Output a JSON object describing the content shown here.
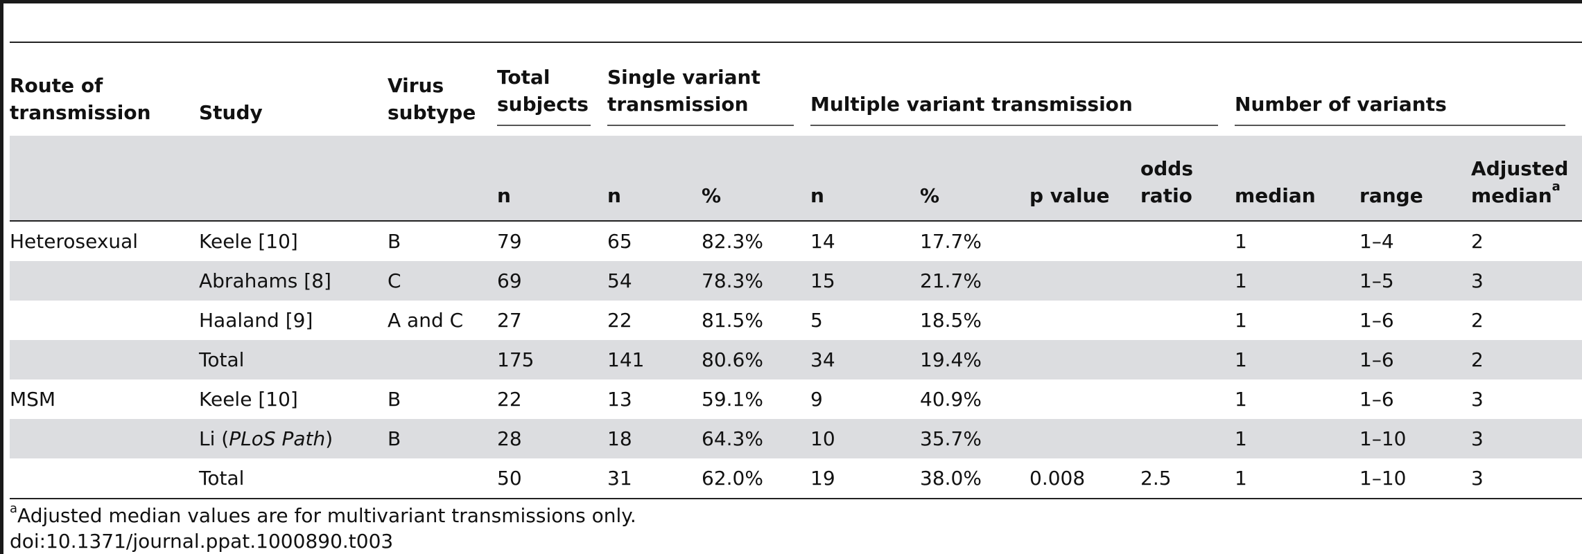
{
  "header_row1": {
    "route": "Route of transmission",
    "study": "Study",
    "virus": "Virus subtype",
    "total": "Total subjects",
    "single": "Single variant transmission",
    "multiple": "Multiple variant transmission",
    "num_variants": "Number of variants"
  },
  "header_row2": {
    "total_n": "n",
    "single_n": "n",
    "single_pct": "%",
    "multi_n": "n",
    "multi_pct": "%",
    "p_value": "p value",
    "odds_ratio": "odds ratio",
    "median": "median",
    "range": "range",
    "adjusted_median": "Adjusted median",
    "adjusted_median_sup": "a"
  },
  "rows": [
    {
      "route": "Heterosexual",
      "study": "Keele [10]",
      "study_italic": "",
      "study_suffix": "",
      "virus": "B",
      "total": "79",
      "single_n": "65",
      "single_pct": "82.3%",
      "multi_n": "14",
      "multi_pct": "17.7%",
      "p": "",
      "odds": "",
      "median": "1",
      "range": "1–4",
      "adj": "2"
    },
    {
      "route": "",
      "study": "Abrahams [8]",
      "study_italic": "",
      "study_suffix": "",
      "virus": "C",
      "total": "69",
      "single_n": "54",
      "single_pct": "78.3%",
      "multi_n": "15",
      "multi_pct": "21.7%",
      "p": "",
      "odds": "",
      "median": "1",
      "range": "1–5",
      "adj": "3"
    },
    {
      "route": "",
      "study": "Haaland [9]",
      "study_italic": "",
      "study_suffix": "",
      "virus": "A and C",
      "total": "27",
      "single_n": "22",
      "single_pct": "81.5%",
      "multi_n": "5",
      "multi_pct": "18.5%",
      "p": "",
      "odds": "",
      "median": "1",
      "range": "1–6",
      "adj": "2"
    },
    {
      "route": "",
      "study": "Total",
      "study_italic": "",
      "study_suffix": "",
      "virus": "",
      "total": "175",
      "single_n": "141",
      "single_pct": "80.6%",
      "multi_n": "34",
      "multi_pct": "19.4%",
      "p": "",
      "odds": "",
      "median": "1",
      "range": "1–6",
      "adj": "2"
    },
    {
      "route": "MSM",
      "study": "Keele [10]",
      "study_italic": "",
      "study_suffix": "",
      "virus": "B",
      "total": "22",
      "single_n": "13",
      "single_pct": "59.1%",
      "multi_n": "9",
      "multi_pct": "40.9%",
      "p": "",
      "odds": "",
      "median": "1",
      "range": "1–6",
      "adj": "3"
    },
    {
      "route": "",
      "study": "Li (",
      "study_italic": "PLoS Path",
      "study_suffix": ")",
      "virus": "B",
      "total": "28",
      "single_n": "18",
      "single_pct": "64.3%",
      "multi_n": "10",
      "multi_pct": "35.7%",
      "p": "",
      "odds": "",
      "median": "1",
      "range": "1–10",
      "adj": "3"
    },
    {
      "route": "",
      "study": "Total",
      "study_italic": "",
      "study_suffix": "",
      "virus": "",
      "total": "50",
      "single_n": "31",
      "single_pct": "62.0%",
      "multi_n": "19",
      "multi_pct": "38.0%",
      "p": "0.008",
      "odds": "2.5",
      "median": "1",
      "range": "1–10",
      "adj": "3"
    }
  ],
  "footnote": {
    "marker": "a",
    "text": "Adjusted median values are for multivariant transmissions only.",
    "doi": "doi:10.1371/journal.ppat.1000890.t003"
  }
}
